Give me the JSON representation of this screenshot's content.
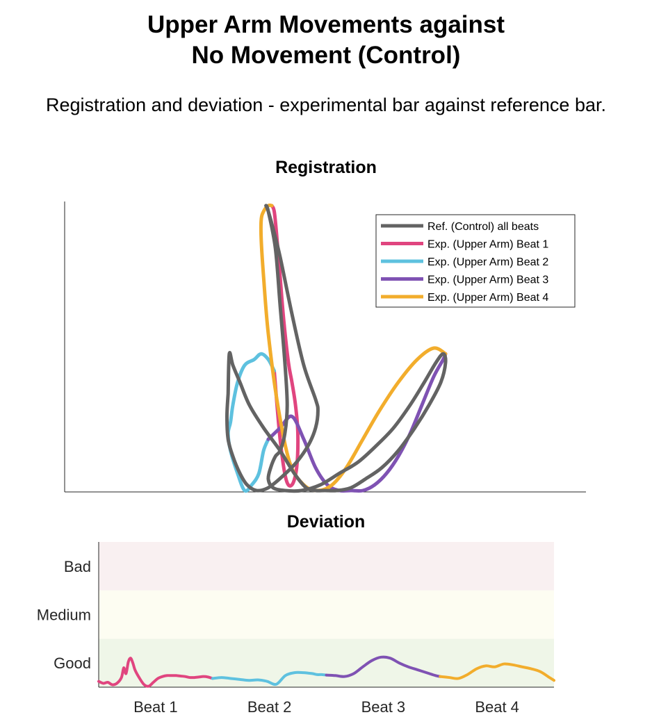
{
  "header": {
    "title_line1": "Upper Arm Movements against",
    "title_line2": "No Movement (Control)",
    "subtitle": "Registration and deviation - experimental bar against reference bar."
  },
  "colors": {
    "reference": "#636363",
    "beat1": "#e0457f",
    "beat2": "#5ec1df",
    "beat3": "#7f52b3",
    "beat4": "#f2ad2c",
    "band_bad": "#f9f0f1",
    "band_medium": "#fdfdf2",
    "band_good": "#eff6e8"
  },
  "chart_data": [
    {
      "type": "line",
      "title": "Registration",
      "xlabel": "",
      "ylabel": "",
      "grid": false,
      "axes_ticks": false,
      "legend_placement": "top-right",
      "legend": [
        "Ref. (Control) all beats",
        "Exp. (Upper Arm) Beat 1",
        "Exp. (Upper Arm) Beat 2",
        "Exp. (Upper Arm) Beat 3",
        "Exp. (Upper Arm) Beat 4"
      ],
      "series": [
        {
          "name": "Ref. (Control) all beats",
          "x": [
            -0.14,
            -0.15,
            -0.14,
            -0.1,
            -0.04,
            0.02,
            0.1,
            0.2,
            0.32,
            0.44,
            0.54,
            0.6,
            0.62,
            0.6,
            0.5,
            0.4,
            0.3,
            0.24,
            0.2,
            0.18,
            0.2,
            0.26,
            0.3,
            0.34,
            0.36,
            0.34,
            0.3,
            0.26,
            0.22,
            0.2,
            0.24,
            0.34,
            0.48,
            0.64,
            0.8,
            0.96,
            1.12,
            1.26,
            1.4,
            1.52,
            1.62,
            1.68,
            1.7,
            1.66,
            1.56,
            1.44,
            1.3,
            1.16,
            1.02,
            0.9,
            0.78,
            0.68,
            0.6,
            0.52,
            0.42,
            0.3,
            0.16,
            0.04,
            -0.04,
            -0.1,
            -0.13,
            -0.14
          ],
          "y": [
            0.34,
            0.26,
            0.18,
            0.12,
            0.06,
            0.02,
            0.0,
            0.01,
            0.05,
            0.1,
            0.16,
            0.22,
            0.28,
            0.32,
            0.44,
            0.62,
            0.82,
            0.92,
            0.98,
            1.0,
            0.98,
            0.85,
            0.65,
            0.45,
            0.3,
            0.2,
            0.14,
            0.12,
            0.08,
            0.04,
            0.01,
            0.0,
            0.0,
            0.02,
            0.06,
            0.1,
            0.16,
            0.22,
            0.3,
            0.38,
            0.45,
            0.48,
            0.45,
            0.38,
            0.3,
            0.22,
            0.14,
            0.08,
            0.04,
            0.01,
            0.0,
            0.0,
            0.0,
            0.01,
            0.06,
            0.14,
            0.22,
            0.3,
            0.38,
            0.44,
            0.48,
            0.34
          ]
        },
        {
          "name": "Exp. (Upper Arm) Beat 1",
          "x": [
            0.23,
            0.25,
            0.27,
            0.3,
            0.33,
            0.37,
            0.4,
            0.43,
            0.45,
            0.44,
            0.4,
            0.35,
            0.3,
            0.25
          ],
          "y": [
            1.0,
            0.98,
            0.9,
            0.75,
            0.6,
            0.45,
            0.38,
            0.3,
            0.2,
            0.08,
            0.02,
            0.04,
            0.18,
            0.42
          ]
        },
        {
          "name": "Exp. (Upper Arm) Beat 2",
          "x": [
            0.25,
            0.2,
            0.14,
            0.08,
            0.0,
            -0.06,
            -0.1,
            -0.12,
            -0.14,
            -0.12,
            -0.06,
            0.0,
            0.06,
            0.12,
            0.16,
            0.2
          ],
          "y": [
            0.42,
            0.46,
            0.48,
            0.46,
            0.44,
            0.38,
            0.3,
            0.24,
            0.2,
            0.14,
            0.06,
            0.0,
            0.02,
            0.06,
            0.14,
            0.18
          ]
        },
        {
          "name": "Exp. (Upper Arm) Beat 3",
          "x": [
            0.2,
            0.3,
            0.4,
            0.5,
            0.6,
            0.7,
            0.8,
            0.9,
            1.0,
            1.1,
            1.2,
            1.3,
            1.4,
            1.5,
            1.6,
            1.68,
            1.7
          ],
          "y": [
            0.18,
            0.22,
            0.26,
            0.18,
            0.08,
            0.02,
            0.0,
            0.0,
            0.0,
            0.02,
            0.06,
            0.12,
            0.2,
            0.3,
            0.4,
            0.46,
            0.48
          ],
          "note_points": "y continues dip then rise on right lobe"
        },
        {
          "name": "Exp. (Upper Arm) Beat 4",
          "x": [
            1.7,
            1.6,
            1.46,
            1.3,
            1.14,
            1.0,
            0.86,
            0.74,
            0.62,
            0.5,
            0.38,
            0.28,
            0.2,
            0.16,
            0.14,
            0.14,
            0.16,
            0.2,
            0.23
          ],
          "y": [
            0.48,
            0.5,
            0.46,
            0.38,
            0.28,
            0.18,
            0.08,
            0.02,
            0.0,
            0.02,
            0.1,
            0.3,
            0.55,
            0.75,
            0.88,
            0.95,
            0.98,
            1.0,
            1.0
          ]
        }
      ]
    },
    {
      "type": "line",
      "title": "Deviation",
      "xlabel": "",
      "ylabel": "",
      "grid": false,
      "ylim": [
        0,
        3
      ],
      "y_tick_labels": [
        "Good",
        "Medium",
        "Bad"
      ],
      "x_tick_labels": [
        "Beat 1",
        "Beat 2",
        "Beat 3",
        "Beat 4"
      ],
      "bands": [
        {
          "name": "Good",
          "range": [
            0,
            1
          ]
        },
        {
          "name": "Medium",
          "range": [
            1,
            2
          ]
        },
        {
          "name": "Bad",
          "range": [
            2,
            3
          ]
        }
      ],
      "series": [
        {
          "name": "Beat 1",
          "x": [
            0.0,
            0.04,
            0.08,
            0.12,
            0.16,
            0.2,
            0.22,
            0.24,
            0.26,
            0.28,
            0.3,
            0.32,
            0.36,
            0.4,
            0.44,
            0.48,
            0.52,
            0.56,
            0.6,
            0.64,
            0.68,
            0.72,
            0.76,
            0.8,
            0.84,
            0.88,
            0.92,
            0.96,
            1.0
          ],
          "y": [
            0.12,
            0.08,
            0.1,
            0.05,
            0.08,
            0.2,
            0.4,
            0.28,
            0.52,
            0.6,
            0.5,
            0.35,
            0.18,
            0.05,
            0.02,
            0.1,
            0.18,
            0.22,
            0.24,
            0.24,
            0.24,
            0.23,
            0.22,
            0.2,
            0.2,
            0.21,
            0.22,
            0.21,
            0.18
          ]
        },
        {
          "name": "Beat 2",
          "x": [
            1.0,
            1.08,
            1.16,
            1.24,
            1.32,
            1.4,
            1.48,
            1.56,
            1.64,
            1.72,
            1.8,
            1.84,
            1.88,
            1.92,
            1.96,
            2.0
          ],
          "y": [
            0.18,
            0.2,
            0.18,
            0.16,
            0.14,
            0.15,
            0.12,
            0.06,
            0.24,
            0.3,
            0.3,
            0.29,
            0.28,
            0.26,
            0.26,
            0.25
          ]
        },
        {
          "name": "Beat 3",
          "x": [
            2.0,
            2.08,
            2.16,
            2.24,
            2.32,
            2.4,
            2.48,
            2.56,
            2.64,
            2.72,
            2.8,
            2.88,
            2.96,
            3.0
          ],
          "y": [
            0.25,
            0.24,
            0.22,
            0.28,
            0.42,
            0.55,
            0.62,
            0.6,
            0.5,
            0.42,
            0.36,
            0.3,
            0.24,
            0.22
          ]
        },
        {
          "name": "Beat 4",
          "x": [
            3.0,
            3.08,
            3.16,
            3.24,
            3.32,
            3.4,
            3.48,
            3.56,
            3.64,
            3.72,
            3.8,
            3.88,
            3.96,
            4.0
          ],
          "y": [
            0.22,
            0.2,
            0.18,
            0.26,
            0.38,
            0.44,
            0.42,
            0.48,
            0.46,
            0.42,
            0.38,
            0.32,
            0.2,
            0.14
          ]
        }
      ]
    }
  ]
}
